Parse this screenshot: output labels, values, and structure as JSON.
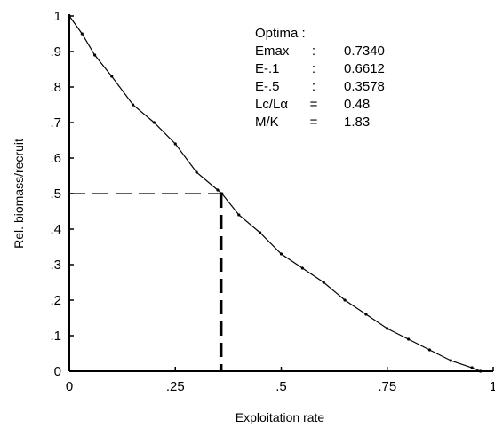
{
  "chart_data": {
    "type": "line",
    "xlabel": "Exploitation rate",
    "ylabel": "Rel. biomass/recruit",
    "xlim": [
      0,
      1
    ],
    "ylim": [
      0,
      1
    ],
    "x_ticks": [
      "0",
      ".25",
      ".5",
      ".75",
      "1"
    ],
    "x_tick_values": [
      0,
      0.25,
      0.5,
      0.75,
      1
    ],
    "y_ticks": [
      "0",
      ".1",
      ".2",
      ".3",
      ".4",
      ".5",
      ".6",
      ".7",
      ".8",
      ".9",
      "1"
    ],
    "y_tick_values": [
      0,
      0.1,
      0.2,
      0.3,
      0.4,
      0.5,
      0.6,
      0.7,
      0.8,
      0.9,
      1
    ],
    "grid": false,
    "series": [
      {
        "x": [
          0.0,
          0.03,
          0.06,
          0.1,
          0.15,
          0.2,
          0.25,
          0.3,
          0.35,
          0.36,
          0.4,
          0.45,
          0.5,
          0.55,
          0.6,
          0.65,
          0.7,
          0.75,
          0.8,
          0.85,
          0.9,
          0.95,
          0.97
        ],
        "y": [
          1.0,
          0.95,
          0.89,
          0.83,
          0.75,
          0.7,
          0.64,
          0.56,
          0.51,
          0.5,
          0.44,
          0.39,
          0.33,
          0.29,
          0.25,
          0.2,
          0.16,
          0.12,
          0.09,
          0.06,
          0.03,
          0.01,
          0.0
        ]
      }
    ],
    "reference": {
      "x": 0.3578,
      "y": 0.5
    },
    "annotation": {
      "title": "Optima :",
      "rows": [
        {
          "name": "Emax",
          "sep": ":",
          "value": "0.7340"
        },
        {
          "name": "E-.1",
          "sep": ":",
          "value": "0.6612"
        },
        {
          "name": "E-.5",
          "sep": ":",
          "value": "0.3578"
        },
        {
          "name": "Lc/Lα",
          "sep": "=",
          "value": "0.48"
        },
        {
          "name": "M/K",
          "sep": "=",
          "value": "1.83"
        }
      ]
    }
  }
}
